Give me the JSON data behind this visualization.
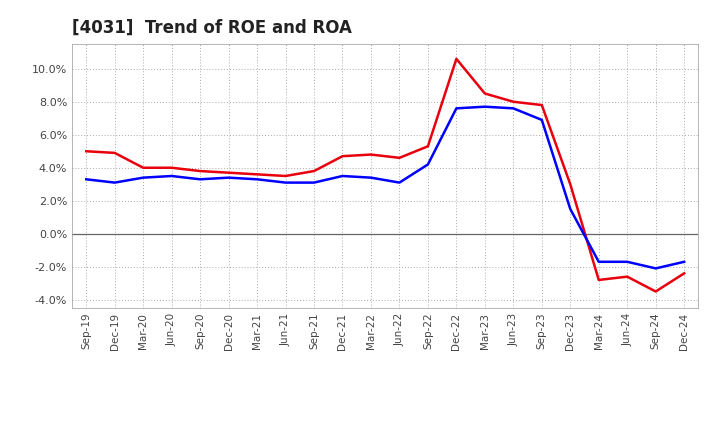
{
  "title": "[4031]  Trend of ROE and ROA",
  "x_labels": [
    "Sep-19",
    "Dec-19",
    "Mar-20",
    "Jun-20",
    "Sep-20",
    "Dec-20",
    "Mar-21",
    "Jun-21",
    "Sep-21",
    "Dec-21",
    "Mar-22",
    "Jun-22",
    "Sep-22",
    "Dec-22",
    "Mar-23",
    "Jun-23",
    "Sep-23",
    "Dec-23",
    "Mar-24",
    "Jun-24",
    "Sep-24",
    "Dec-24"
  ],
  "roe": [
    5.0,
    4.9,
    4.0,
    4.0,
    3.8,
    3.7,
    3.6,
    3.5,
    3.8,
    4.7,
    4.8,
    4.6,
    5.3,
    10.6,
    8.5,
    8.0,
    7.8,
    3.0,
    -2.8,
    -2.6,
    -3.5,
    -2.4
  ],
  "roa": [
    3.3,
    3.1,
    3.4,
    3.5,
    3.3,
    3.4,
    3.3,
    3.1,
    3.1,
    3.5,
    3.4,
    3.1,
    4.2,
    7.6,
    7.7,
    7.6,
    6.9,
    1.5,
    -1.7,
    -1.7,
    -2.1,
    -1.7
  ],
  "roe_color": "#e8000d",
  "roa_color": "#0000ff",
  "background_color": "#ffffff",
  "plot_bg_color": "#ffffff",
  "grid_color": "#aaaaaa",
  "ylim": [
    -4.5,
    11.5
  ],
  "yticks": [
    -4.0,
    -2.0,
    0.0,
    2.0,
    4.0,
    6.0,
    8.0,
    10.0
  ],
  "line_width": 1.8
}
